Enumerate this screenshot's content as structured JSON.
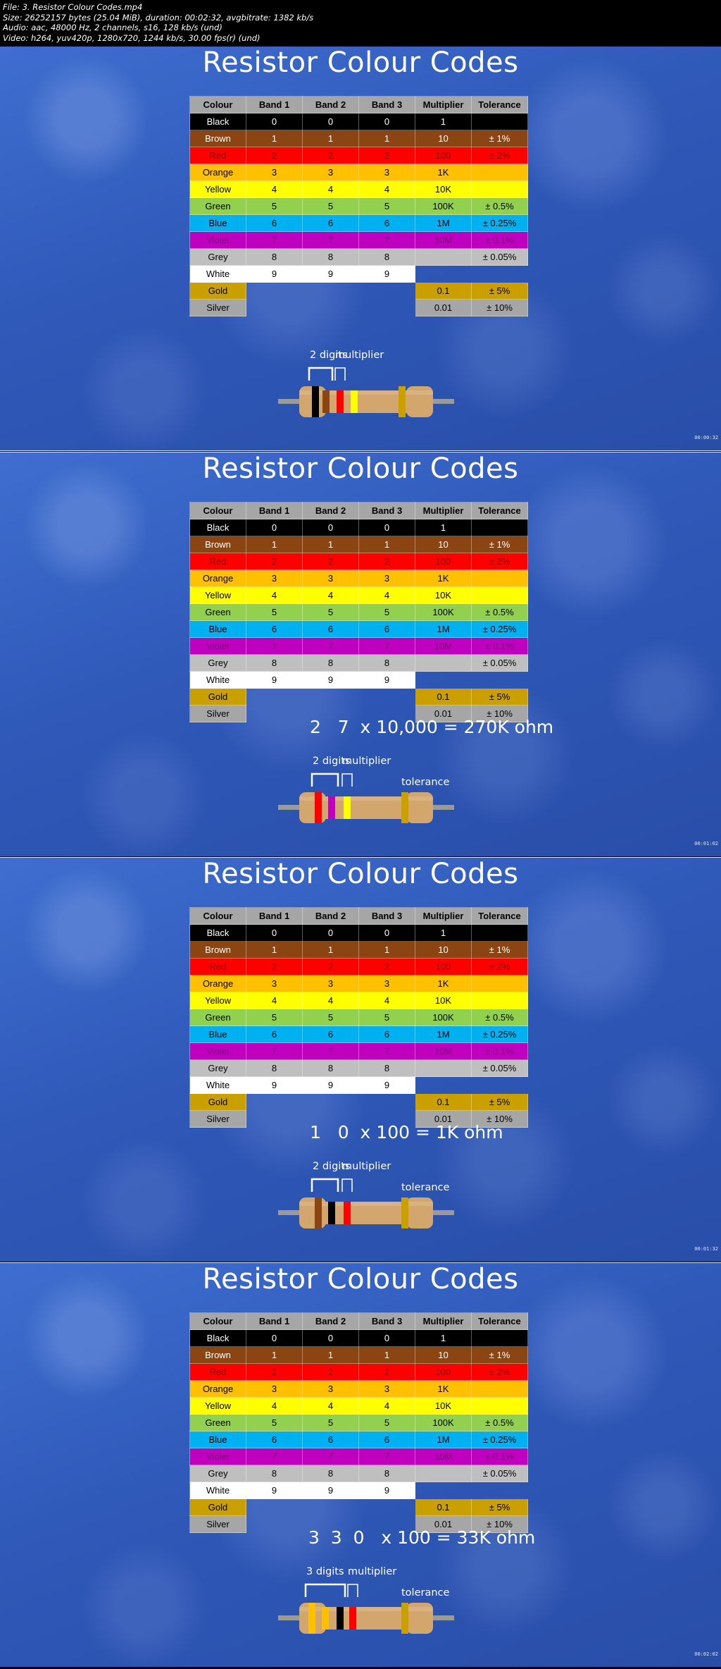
{
  "header": {
    "lines": [
      "File: 3. Resistor Colour Codes.mp4",
      "Size: 26252157 bytes (25.04 MiB), duration: 00:02:32, avgbitrate: 1382 kb/s",
      "Audio: aac, 48000 Hz, 2 channels, s16, 128 kb/s (und)",
      "Video: h264, yuv420p, 1280x720, 1244 kb/s, 30.00 fps(r) (und)"
    ]
  },
  "title": "Resistor Colour Codes",
  "table": {
    "headers": [
      "Colour",
      "Band 1",
      "Band 2",
      "Band 3",
      "Multiplier",
      "Tolerance"
    ],
    "rows": [
      {
        "cells": [
          "Black",
          "0",
          "0",
          "0",
          "1",
          ""
        ],
        "bg": "#000000",
        "fg": "#ffffff"
      },
      {
        "cells": [
          "Brown",
          "1",
          "1",
          "1",
          "10",
          "± 1%"
        ],
        "bg": "#8b4513",
        "fg": "#ffffff"
      },
      {
        "cells": [
          "Red",
          "2",
          "2",
          "2",
          "100",
          "± 2%"
        ],
        "bg": "#ff0000",
        "fg": "#8b0000"
      },
      {
        "cells": [
          "Orange",
          "3",
          "3",
          "3",
          "1K",
          ""
        ],
        "bg": "#ffc000",
        "fg": "#000000"
      },
      {
        "cells": [
          "Yellow",
          "4",
          "4",
          "4",
          "10K",
          ""
        ],
        "bg": "#ffff00",
        "fg": "#000000"
      },
      {
        "cells": [
          "Green",
          "5",
          "5",
          "5",
          "100K",
          "± 0.5%"
        ],
        "bg": "#92d050",
        "fg": "#000000"
      },
      {
        "cells": [
          "Blue",
          "6",
          "6",
          "6",
          "1M",
          "± 0.25%"
        ],
        "bg": "#00b0f0",
        "fg": "#000000"
      },
      {
        "cells": [
          "Violet",
          "7",
          "7",
          "7",
          "10M",
          "± 0.1%"
        ],
        "bg": "#bf00bf",
        "fg": "#7a007a"
      },
      {
        "cells": [
          "Grey",
          "8",
          "8",
          "8",
          "",
          "± 0.05%"
        ],
        "bg": "#bfbfbf",
        "fg": "#000000"
      },
      {
        "cells": [
          "White",
          "9",
          "9",
          "9",
          "",
          ""
        ],
        "bg": "#ffffff",
        "fg": "#000000"
      },
      {
        "cells": [
          "Gold",
          "",
          "",
          "",
          "0.1",
          "± 5%"
        ],
        "bg": "#c9a000",
        "fg": "#000000"
      },
      {
        "cells": [
          "Silver",
          "",
          "",
          "",
          "0.01",
          "± 10%"
        ],
        "bg": "#a6a6a6",
        "fg": "#000000"
      }
    ]
  },
  "frames": [
    {
      "calculation": "",
      "digits_label": "2 digits",
      "multiplier_label": "multiplier",
      "tolerance_label": "",
      "bands": [
        "#000000",
        "#8b4513",
        "#ff0000",
        "#ffff00",
        "#c9a000"
      ],
      "timestamp": "00:00:32"
    },
    {
      "calculation": "2   7  x 10,000 = 270K ohm",
      "digits_label": "2 digits",
      "multiplier_label": "multiplier",
      "tolerance_label": "tolerance",
      "bands": [
        "#ff0000",
        "#bf00bf",
        "#ffff00",
        "#c9a000"
      ],
      "timestamp": "00:01:02"
    },
    {
      "calculation": "1   0  x 100 = 1K ohm",
      "digits_label": "2 digits",
      "multiplier_label": "multiplier",
      "tolerance_label": "tolerance",
      "bands": [
        "#8b4513",
        "#000000",
        "#ff0000",
        "#c9a000"
      ],
      "timestamp": "00:01:32"
    },
    {
      "calculation": "3  3  0   x 100 = 33K ohm",
      "digits_label": "3 digits",
      "multiplier_label": "multiplier",
      "tolerance_label": "tolerance",
      "bands": [
        "#ffc000",
        "#ffc000",
        "#000000",
        "#ff0000",
        "#c9a000"
      ],
      "timestamp": "00:02:02"
    }
  ]
}
